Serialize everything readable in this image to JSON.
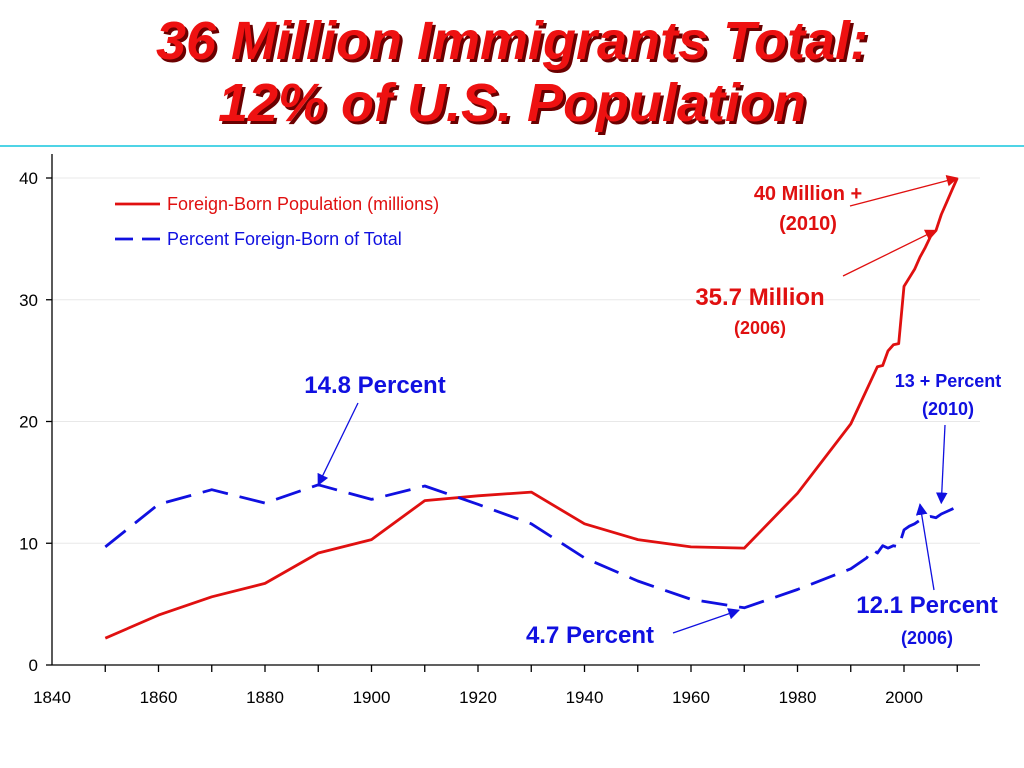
{
  "title": {
    "line1": "36 Million Immigrants Total:",
    "line2": "12% of U.S. Population"
  },
  "colors": {
    "title": "#ee1111",
    "title_shadow": "#6b0000",
    "rule": "#4fd4e6",
    "foreign_born": "#e01010",
    "percent": "#1010e0"
  },
  "chart_data": {
    "type": "line",
    "xlim": [
      1840,
      2010
    ],
    "ylim": [
      0,
      40
    ],
    "x_ticks": [
      1840,
      1860,
      1880,
      1900,
      1920,
      1940,
      1960,
      1980,
      2000
    ],
    "y_ticks": [
      0,
      10,
      20,
      30,
      40
    ],
    "legend_position": "top-left",
    "series": [
      {
        "name": "Foreign-Born Population (millions)",
        "style": "solid",
        "color": "#e01010",
        "x": [
          1850,
          1860,
          1870,
          1880,
          1890,
          1900,
          1910,
          1920,
          1930,
          1940,
          1950,
          1960,
          1970,
          1980,
          1990,
          1995,
          1996,
          1997,
          1998,
          1999,
          2000,
          2001,
          2002,
          2003,
          2004,
          2005,
          2006,
          2007,
          2008,
          2009,
          2010
        ],
        "y": [
          2.2,
          4.1,
          5.6,
          6.7,
          9.2,
          10.3,
          13.5,
          13.9,
          14.2,
          11.6,
          10.3,
          9.7,
          9.6,
          14.1,
          19.8,
          24.5,
          24.6,
          25.8,
          26.3,
          26.4,
          31.1,
          31.8,
          32.5,
          33.5,
          34.3,
          35.2,
          35.7,
          37.0,
          38.0,
          39.0,
          40.0
        ]
      },
      {
        "name": "Percent Foreign-Born of Total",
        "style": "dashed",
        "color": "#1010e0",
        "x": [
          1850,
          1860,
          1870,
          1880,
          1890,
          1900,
          1910,
          1920,
          1930,
          1940,
          1950,
          1960,
          1970,
          1980,
          1990,
          1993,
          1994,
          1995,
          1996,
          1997,
          1998,
          1999,
          2000,
          2001,
          2002,
          2003,
          2004,
          2005,
          2006,
          2007,
          2008,
          2009,
          2010
        ],
        "y": [
          9.7,
          13.2,
          14.4,
          13.3,
          14.8,
          13.6,
          14.7,
          13.2,
          11.6,
          8.8,
          6.9,
          5.4,
          4.7,
          6.2,
          7.9,
          8.8,
          9.5,
          9.2,
          9.8,
          9.6,
          9.8,
          9.7,
          11.1,
          11.4,
          11.6,
          11.9,
          12.1,
          12.2,
          12.1,
          12.4,
          12.6,
          12.8,
          13.0
        ]
      }
    ],
    "annotations": [
      {
        "id": "ann-40m",
        "lines": [
          "40  Million +",
          "(2010)"
        ],
        "color": "#e01010",
        "arrow_to": [
          2010,
          40
        ]
      },
      {
        "id": "ann-357m",
        "lines": [
          "35.7 Million",
          "(2006)"
        ],
        "color": "#e01010",
        "arrow_to": [
          2006,
          35.7
        ]
      },
      {
        "id": "ann-148",
        "lines": [
          "14.8 Percent"
        ],
        "color": "#1010e0",
        "arrow_to": [
          1890,
          14.8
        ]
      },
      {
        "id": "ann-13p",
        "lines": [
          "13 + Percent",
          "(2010)"
        ],
        "color": "#1010e0",
        "arrow_to": [
          2007,
          13.3
        ]
      },
      {
        "id": "ann-47",
        "lines": [
          "4.7 Percent"
        ],
        "color": "#1010e0",
        "arrow_to": [
          1969,
          4.5
        ]
      },
      {
        "id": "ann-121",
        "lines": [
          "12.1 Percent",
          "(2006)"
        ],
        "color": "#1010e0",
        "arrow_to": [
          2003,
          13.2
        ]
      }
    ]
  }
}
